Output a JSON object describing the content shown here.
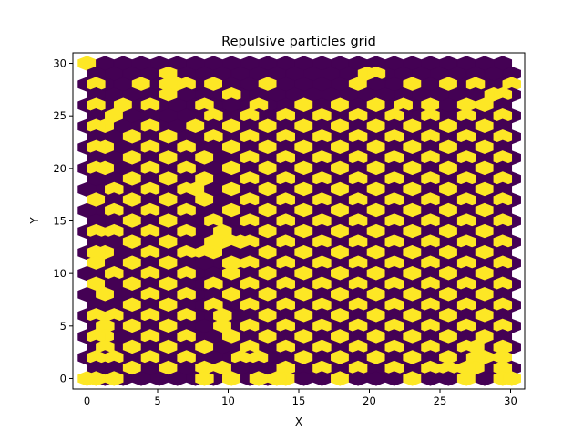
{
  "chart_data": {
    "type": "heatmap",
    "subtype": "hexbin",
    "title": "Repulsive particles grid",
    "xlabel": "X",
    "ylabel": "Y",
    "xlim": [
      -1,
      31
    ],
    "ylim": [
      -1,
      31
    ],
    "xticks": [
      0,
      5,
      10,
      15,
      20,
      25,
      30
    ],
    "yticks": [
      0,
      5,
      10,
      15,
      20,
      25,
      30
    ],
    "grid": false,
    "colors": {
      "empty": "#440154",
      "filled": "#fde725"
    },
    "hex_pitch": 1.28,
    "rows": [
      {
        "y": 30.0,
        "offset": false,
        "filled": [
          0
        ]
      },
      {
        "y": 29.0,
        "offset": true,
        "filled": [
          5.76,
          19.84,
          20.48
        ]
      },
      {
        "y": 28.0,
        "offset": false,
        "filled": [
          0.64,
          3.84,
          5.76,
          6.4,
          7.04,
          8.96,
          12.8,
          19.2,
          23.04,
          25.6,
          27.52,
          30.08
        ]
      },
      {
        "y": 27.0,
        "offset": true,
        "filled": [
          5.76,
          10.24,
          28.8,
          29.44
        ]
      },
      {
        "y": 26.0,
        "offset": false,
        "filled": [
          0.64,
          2.56,
          4.48,
          8.32,
          12.16,
          15.36,
          17.92,
          20.48,
          22.4,
          24.32,
          26.88,
          28.16
        ]
      },
      {
        "y": 25.0,
        "offset": true,
        "filled": [
          1.92,
          8.96,
          11.52,
          14.08,
          16.64,
          19.2,
          21.76,
          24.32,
          26.88,
          29.44
        ]
      },
      {
        "y": 24.0,
        "offset": false,
        "filled": [
          0.64,
          1.28,
          4.48,
          7.68,
          10.24,
          12.8,
          15.36,
          17.92,
          20.48,
          23.04,
          25.6,
          28.16
        ]
      },
      {
        "y": 23.0,
        "offset": true,
        "filled": [
          3.2,
          5.76,
          8.96,
          11.52,
          14.08,
          16.64,
          19.2,
          21.76,
          24.32,
          26.88,
          29.44
        ]
      },
      {
        "y": 22.0,
        "offset": false,
        "filled": [
          0.64,
          1.28,
          4.48,
          7.04,
          10.24,
          12.8,
          15.36,
          17.92,
          20.48,
          23.04,
          25.6,
          28.16
        ]
      },
      {
        "y": 21.0,
        "offset": true,
        "filled": [
          3.2,
          5.76,
          8.32,
          11.52,
          14.08,
          16.64,
          19.2,
          21.76,
          24.32,
          26.88,
          29.44
        ]
      },
      {
        "y": 20.0,
        "offset": false,
        "filled": [
          0.64,
          1.28,
          4.48,
          7.04,
          10.24,
          12.8,
          15.36,
          17.92,
          20.48,
          23.04,
          25.6,
          28.16
        ]
      },
      {
        "y": 19.0,
        "offset": true,
        "filled": [
          3.2,
          5.76,
          8.32,
          11.52,
          14.08,
          16.64,
          19.2,
          21.76,
          24.32,
          26.88,
          29.44
        ]
      },
      {
        "y": 18.0,
        "offset": false,
        "filled": [
          1.92,
          4.48,
          7.04,
          7.68,
          10.24,
          12.8,
          15.36,
          17.92,
          20.48,
          23.04,
          25.6,
          28.16
        ]
      },
      {
        "y": 17.0,
        "offset": true,
        "filled": [
          0.64,
          3.2,
          5.76,
          8.32,
          11.52,
          14.08,
          16.64,
          19.2,
          21.76,
          24.32,
          26.88,
          29.44
        ]
      },
      {
        "y": 16.0,
        "offset": false,
        "filled": [
          1.92,
          4.48,
          7.04,
          10.24,
          12.8,
          15.36,
          17.92,
          20.48,
          23.04,
          25.6,
          28.16
        ]
      },
      {
        "y": 15.0,
        "offset": true,
        "filled": [
          3.2,
          5.76,
          8.96,
          11.52,
          14.08,
          16.64,
          19.2,
          21.76,
          24.32,
          26.88,
          29.44
        ]
      },
      {
        "y": 14.0,
        "offset": false,
        "filled": [
          0.64,
          1.92,
          4.48,
          7.04,
          9.6,
          12.8,
          15.36,
          17.92,
          20.48,
          23.04,
          25.6,
          28.16
        ]
      },
      {
        "y": 13.0,
        "offset": true,
        "filled": [
          3.2,
          5.76,
          8.96,
          9.6,
          10.24,
          10.88,
          11.52,
          14.08,
          16.64,
          19.2,
          21.76,
          24.32,
          26.88,
          29.44
        ]
      },
      {
        "y": 12.0,
        "offset": false,
        "filled": [
          0.64,
          1.28,
          4.48,
          7.04,
          8.32,
          8.96,
          12.8,
          15.36,
          17.92,
          20.48,
          23.04,
          25.6,
          28.16
        ]
      },
      {
        "y": 11.0,
        "offset": true,
        "filled": [
          0.64,
          3.2,
          5.76,
          10.24,
          11.52,
          14.08,
          16.64,
          19.2,
          21.76,
          24.32,
          26.88,
          29.44
        ]
      },
      {
        "y": 10.0,
        "offset": false,
        "filled": [
          1.92,
          4.48,
          7.04,
          10.24,
          12.8,
          15.36,
          17.92,
          20.48,
          23.04,
          25.6,
          28.16
        ]
      },
      {
        "y": 9.0,
        "offset": true,
        "filled": [
          0.64,
          3.2,
          5.76,
          8.96,
          11.52,
          14.08,
          16.64,
          19.2,
          21.76,
          24.32,
          26.88,
          29.44
        ]
      },
      {
        "y": 8.0,
        "offset": false,
        "filled": [
          1.28,
          4.48,
          7.04,
          10.24,
          12.8,
          15.36,
          17.92,
          20.48,
          23.04,
          25.6,
          28.16
        ]
      },
      {
        "y": 7.0,
        "offset": true,
        "filled": [
          3.2,
          5.76,
          8.96,
          11.52,
          14.08,
          16.64,
          19.2,
          21.76,
          24.32,
          26.88,
          29.44
        ]
      },
      {
        "y": 6.0,
        "offset": false,
        "filled": [
          0.64,
          1.92,
          4.48,
          7.04,
          9.6,
          12.8,
          15.36,
          17.92,
          20.48,
          23.04,
          25.6,
          28.16
        ]
      },
      {
        "y": 5.0,
        "offset": true,
        "filled": [
          1.28,
          3.2,
          5.76,
          9.6,
          11.52,
          14.08,
          16.64,
          19.2,
          21.76,
          24.32,
          26.88,
          29.44
        ]
      },
      {
        "y": 4.0,
        "offset": false,
        "filled": [
          0.64,
          1.28,
          4.48,
          7.04,
          10.24,
          12.8,
          15.36,
          17.92,
          20.48,
          23.04,
          25.6,
          28.16
        ]
      },
      {
        "y": 3.0,
        "offset": true,
        "filled": [
          1.28,
          3.2,
          5.76,
          8.32,
          11.52,
          14.08,
          16.64,
          19.2,
          21.76,
          24.32,
          26.88,
          27.52,
          29.44
        ]
      },
      {
        "y": 2.0,
        "offset": false,
        "filled": [
          0.64,
          1.92,
          4.48,
          7.04,
          10.88,
          12.16,
          15.36,
          17.92,
          20.48,
          23.04,
          25.6,
          27.52,
          28.16,
          29.44
        ]
      },
      {
        "y": 1.0,
        "offset": true,
        "filled": [
          3.2,
          5.76,
          8.32,
          9.6,
          14.08,
          16.64,
          19.2,
          21.76,
          24.32,
          25.6,
          26.88,
          27.52,
          29.44
        ]
      },
      {
        "y": 0.0,
        "offset": false,
        "filled": [
          0,
          0.64,
          1.92,
          8.32,
          10.24,
          12.16,
          13.44,
          14.08,
          17.92,
          23.04,
          26.88,
          29.44,
          30.08
        ]
      }
    ]
  }
}
